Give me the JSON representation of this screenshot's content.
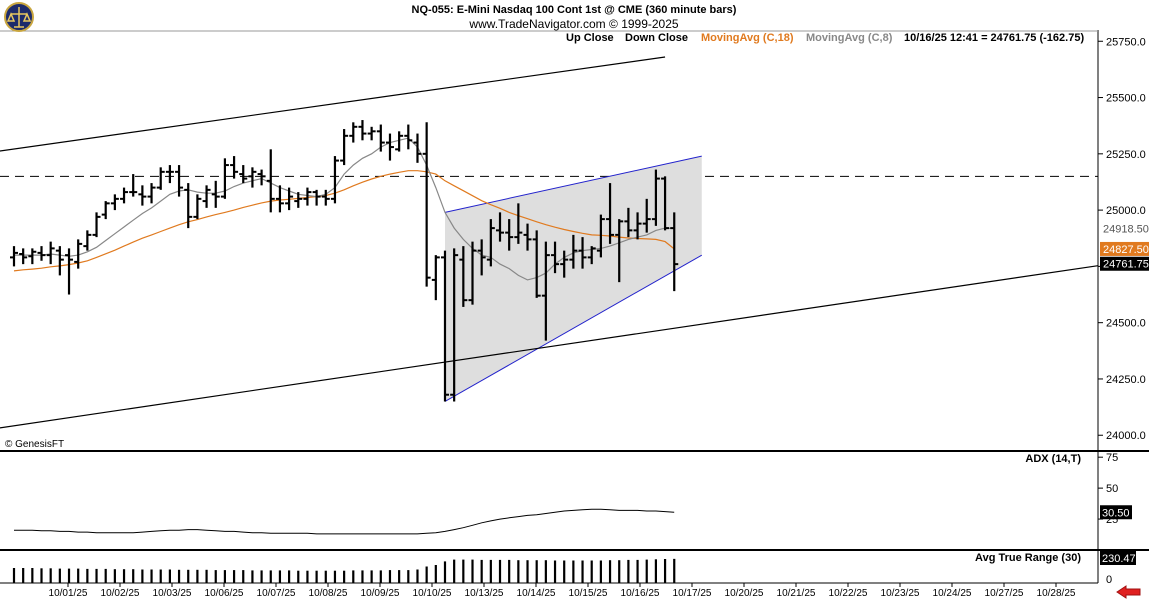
{
  "header": {
    "title": "NQ-055:  E-Mini Nasdaq 100 Cont 1st @ CME  (360 minute bars)",
    "subtitle": "www.TradeNavigator.com © 1999-2025",
    "copyright": "© GenesisFT"
  },
  "legend": {
    "up_close": "Up Close",
    "down_close": "Down Close",
    "ma18": "MovingAvg (C,18)",
    "ma8": "MovingAvg (C,8)",
    "last": "10/16/25 12:41 = 24761.75 (-162.75)"
  },
  "colors": {
    "bars": "#000000",
    "ma18": "#e07a1f",
    "ma8": "#888888",
    "channel": "#2222cc",
    "channel_fill": "#dedede",
    "price_box": "#000000",
    "ma18_box": "#e07a1f",
    "ma8_box": "#888888",
    "arrow": "#e02020"
  },
  "chart_data": [
    {
      "type": "ohlc",
      "panel": "price",
      "ylim": [
        23930,
        25800
      ],
      "y_ticks": [
        24000,
        24250,
        24500,
        24750,
        25000,
        25250,
        25500,
        25750
      ],
      "y_tick_labels": [
        "24000.0",
        "24250.0",
        "24500.0",
        "24750.0",
        "25000.0",
        "25250.0",
        "25500.0",
        "25750.0"
      ],
      "x_tick_labels": [
        "10/01/25",
        "10/02/25",
        "10/03/25",
        "10/06/25",
        "10/07/25",
        "10/08/25",
        "10/09/25",
        "10/10/25",
        "10/13/25",
        "10/14/25",
        "10/15/25",
        "10/16/25",
        "10/17/25",
        "10/20/25",
        "10/21/25",
        "10/22/25",
        "10/23/25",
        "10/24/25",
        "10/27/25",
        "10/28/25"
      ],
      "bars": [
        [
          24790,
          24840,
          24750,
          24810
        ],
        [
          24805,
          24830,
          24760,
          24790
        ],
        [
          24795,
          24830,
          24760,
          24815
        ],
        [
          24810,
          24840,
          24775,
          24800
        ],
        [
          24800,
          24860,
          24760,
          24830
        ],
        [
          24820,
          24840,
          24710,
          24780
        ],
        [
          24800,
          24830,
          24625,
          24780
        ],
        [
          24770,
          24870,
          24740,
          24850
        ],
        [
          24840,
          24910,
          24820,
          24890
        ],
        [
          24890,
          24990,
          24880,
          24970
        ],
        [
          24980,
          25040,
          24960,
          25030
        ],
        [
          25030,
          25070,
          25000,
          25050
        ],
        [
          25050,
          25100,
          25030,
          25080
        ],
        [
          25080,
          25160,
          25060,
          25080
        ],
        [
          25070,
          25110,
          25020,
          25060
        ],
        [
          25060,
          25120,
          25030,
          25100
        ],
        [
          25100,
          25190,
          25090,
          25170
        ],
        [
          25170,
          25200,
          25120,
          25170
        ],
        [
          25170,
          25200,
          25060,
          25100
        ],
        [
          25090,
          25120,
          24920,
          24970
        ],
        [
          24970,
          25070,
          24960,
          25050
        ],
        [
          25040,
          25110,
          25010,
          25090
        ],
        [
          25070,
          25130,
          25010,
          25060
        ],
        [
          25060,
          25230,
          25050,
          25200
        ],
        [
          25200,
          25240,
          25140,
          25170
        ],
        [
          25160,
          25200,
          25120,
          25140
        ],
        [
          25150,
          25190,
          25100,
          25170
        ],
        [
          25160,
          25180,
          25110,
          25150
        ],
        [
          25130,
          25270,
          24990,
          25050
        ],
        [
          25050,
          25110,
          24990,
          25030
        ],
        [
          25030,
          25100,
          25000,
          25060
        ],
        [
          25040,
          25080,
          25010,
          25050
        ],
        [
          25050,
          25100,
          25020,
          25080
        ],
        [
          25080,
          25090,
          25020,
          25060
        ],
        [
          25060,
          25090,
          25020,
          25050
        ],
        [
          25050,
          25240,
          25030,
          25220
        ],
        [
          25220,
          25360,
          25200,
          25330
        ],
        [
          25330,
          25390,
          25300,
          25370
        ],
        [
          25370,
          25400,
          25310,
          25340
        ],
        [
          25340,
          25370,
          25310,
          25350
        ],
        [
          25350,
          25380,
          25260,
          25300
        ],
        [
          25300,
          25340,
          25220,
          25280
        ],
        [
          25270,
          25350,
          25260,
          25330
        ],
        [
          25330,
          25380,
          25270,
          25310
        ],
        [
          25300,
          25340,
          25210,
          25250
        ],
        [
          25250,
          25390,
          24660,
          24700
        ],
        [
          24690,
          24800,
          24600,
          24790
        ],
        [
          24790,
          24820,
          24150,
          24180
        ],
        [
          24180,
          24830,
          24150,
          24800
        ],
        [
          24780,
          24840,
          24570,
          24600
        ],
        [
          24600,
          24860,
          24580,
          24820
        ],
        [
          24820,
          24870,
          24710,
          24790
        ],
        [
          24780,
          24960,
          24750,
          24920
        ],
        [
          24910,
          24990,
          24860,
          24900
        ],
        [
          24900,
          24960,
          24820,
          24880
        ],
        [
          24880,
          25030,
          24850,
          24900
        ],
        [
          24890,
          24940,
          24820,
          24870
        ],
        [
          24870,
          24910,
          24610,
          24620
        ],
        [
          24620,
          24860,
          24420,
          24800
        ],
        [
          24800,
          24860,
          24720,
          24760
        ],
        [
          24760,
          24820,
          24700,
          24780
        ],
        [
          24780,
          24890,
          24740,
          24820
        ],
        [
          24820,
          24880,
          24740,
          24790
        ],
        [
          24790,
          24840,
          24760,
          24830
        ],
        [
          24820,
          24980,
          24790,
          24960
        ],
        [
          24960,
          25120,
          24850,
          24890
        ],
        [
          24890,
          24960,
          24680,
          24950
        ],
        [
          24950,
          25010,
          24880,
          24910
        ],
        [
          24910,
          24990,
          24870,
          24940
        ],
        [
          24940,
          25050,
          24900,
          24960
        ],
        [
          24960,
          25180,
          24930,
          25140
        ],
        [
          25140,
          25150,
          24910,
          24920
        ],
        [
          24920,
          24990,
          24640,
          24760
        ]
      ],
      "ma18": [
        24730,
        24735,
        24738,
        24742,
        24748,
        24752,
        24758,
        24765,
        24775,
        24790,
        24806,
        24822,
        24840,
        24858,
        24875,
        24890,
        24905,
        24920,
        24935,
        24948,
        24958,
        24970,
        24980,
        24990,
        25000,
        25012,
        25022,
        25032,
        25040,
        25045,
        25048,
        25052,
        25056,
        25060,
        25065,
        25075,
        25090,
        25108,
        25124,
        25138,
        25150,
        25160,
        25168,
        25175,
        25175,
        25170,
        25160,
        25130,
        25108,
        25086,
        25064,
        25042,
        25024,
        25008,
        24990,
        24975,
        24962,
        24948,
        24935,
        24924,
        24914,
        24905,
        24897,
        24890,
        24888,
        24885,
        24880,
        24876,
        24874,
        24872,
        24870,
        24860,
        24827.5
      ],
      "ma8": [
        24800,
        24800,
        24800,
        24800,
        24805,
        24800,
        24795,
        24800,
        24815,
        24835,
        24865,
        24895,
        24925,
        24955,
        24985,
        25010,
        25040,
        25070,
        25085,
        25090,
        25080,
        25075,
        25075,
        25085,
        25105,
        25120,
        25130,
        25140,
        25120,
        25100,
        25085,
        25070,
        25065,
        25060,
        25070,
        25100,
        25160,
        25200,
        25230,
        25250,
        25280,
        25300,
        25310,
        25320,
        25280,
        25200,
        25100,
        24990,
        24920,
        24870,
        24830,
        24800,
        24790,
        24760,
        24740,
        24710,
        24690,
        24700,
        24720,
        24760,
        24790,
        24810,
        24820,
        24825,
        24830,
        24840,
        24855,
        24870,
        24880,
        24890,
        24910,
        24920,
        24918.5
      ],
      "annotations": {
        "price_box": "24761.75",
        "ma18_box": "24827.50",
        "ma8_box": "24918.50",
        "dashed_level": 25150,
        "channel_upper": [
          [
            47,
            24990
          ],
          [
            75,
            25240
          ]
        ],
        "channel_lower": [
          [
            47,
            24150
          ],
          [
            75,
            24800
          ]
        ],
        "trend_upper": [
          [
            -2,
            25260
          ],
          [
            71,
            25680
          ]
        ],
        "trend_lower": [
          [
            -2,
            24030
          ],
          [
            121,
            24770
          ]
        ]
      }
    },
    {
      "type": "line",
      "panel": "adx",
      "title": "ADX (14,T)",
      "ylim": [
        0,
        80
      ],
      "y_ticks": [
        25,
        50,
        75
      ],
      "y_tick_labels": [
        "25",
        "50",
        "75"
      ],
      "last_label": "30.50",
      "values": [
        16,
        16,
        16,
        15.5,
        15.5,
        15,
        15,
        14.5,
        14.5,
        14,
        14,
        14,
        14,
        14,
        14.5,
        15,
        15.5,
        16,
        16,
        16.5,
        16.5,
        16,
        15.5,
        15,
        15,
        14.5,
        14,
        14,
        13.5,
        13.5,
        13.5,
        13.5,
        13.5,
        13,
        13,
        13,
        13,
        13,
        13,
        13,
        13,
        13,
        13,
        13,
        13,
        13.5,
        14,
        15,
        16.5,
        18,
        20,
        22,
        23.5,
        25,
        26,
        27,
        28,
        28.5,
        29.5,
        30.5,
        31.5,
        32,
        32.5,
        33,
        33,
        32.5,
        32,
        32,
        32,
        31.5,
        31.5,
        31,
        30.5
      ]
    },
    {
      "type": "bar",
      "panel": "atr",
      "title": "Avg True Range (30)",
      "last_label": "230.47",
      "values": [
        200,
        200,
        200,
        199,
        199,
        198,
        198,
        198,
        197,
        197,
        197,
        196,
        196,
        196,
        195,
        195,
        195,
        195,
        194,
        194,
        194,
        194,
        193,
        193,
        193,
        193,
        192,
        192,
        192,
        192,
        192,
        191,
        191,
        191,
        191,
        191,
        191,
        192,
        192,
        192,
        192,
        193,
        193,
        193,
        195,
        205,
        210,
        222,
        228,
        228,
        228,
        227,
        227,
        227,
        227,
        226,
        226,
        226,
        226,
        225,
        225,
        225,
        225,
        225,
        225,
        226,
        226,
        227,
        227,
        228,
        229,
        230,
        230.47
      ]
    }
  ]
}
